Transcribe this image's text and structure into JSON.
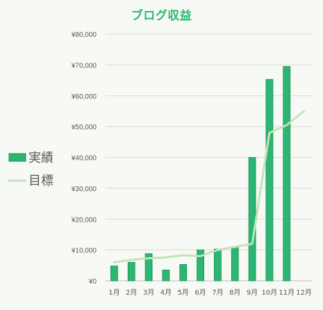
{
  "chart_data": {
    "type": "bar",
    "title": "ブログ収益",
    "categories": [
      "1月",
      "2月",
      "3月",
      "4月",
      "5月",
      "6月",
      "7月",
      "8月",
      "9月",
      "10月",
      "11月",
      "12月"
    ],
    "series": [
      {
        "name": "実績",
        "type": "bar",
        "color": "#2bb673",
        "values": [
          4800,
          6000,
          8800,
          3500,
          5300,
          10000,
          10300,
          11000,
          40000,
          65300,
          69500,
          null
        ]
      },
      {
        "name": "目標",
        "type": "line",
        "color": "#c5e3b8",
        "values": [
          6000,
          6800,
          7300,
          7600,
          8300,
          8000,
          10000,
          11000,
          12000,
          48000,
          50500,
          55000
        ]
      }
    ],
    "yticks": [
      "¥0",
      "¥10,000",
      "¥20,000",
      "¥30,000",
      "¥40,000",
      "¥50,000",
      "¥60,000",
      "¥70,000",
      "¥80,000"
    ],
    "ylim": [
      0,
      80000
    ],
    "grid": true,
    "legend_position": "left"
  }
}
